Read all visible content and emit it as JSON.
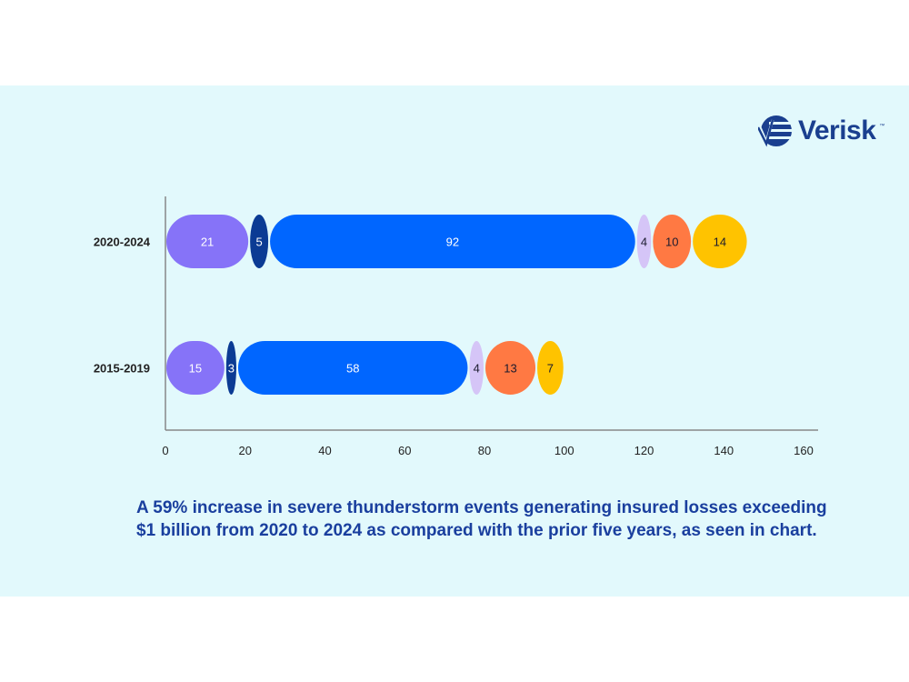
{
  "logo": {
    "text": "Verisk",
    "tm": "™"
  },
  "caption": {
    "line1": "A 59% increase in severe thunderstorm events generating insured losses exceeding",
    "line2": "$1 billion from 2020 to 2024 as compared with the prior five years, as seen in chart."
  },
  "chart_data": {
    "type": "bar",
    "orientation": "horizontal",
    "stacked": true,
    "categories": [
      "2020-2024",
      "2015-2019"
    ],
    "series": [
      {
        "values": [
          21,
          15
        ],
        "color": "#8673f8"
      },
      {
        "values": [
          5,
          3
        ],
        "color": "#0b3b94"
      },
      {
        "values": [
          92,
          58
        ],
        "color": "#0066ff"
      },
      {
        "values": [
          4,
          4
        ],
        "color": "#d5c5f7"
      },
      {
        "values": [
          10,
          13
        ],
        "color": "#ff7943"
      },
      {
        "values": [
          14,
          7
        ],
        "color": "#ffc300"
      }
    ],
    "label_colors": [
      "#ffffff",
      "#ffffff",
      "#ffffff",
      "#1a1a2e",
      "#1a1a2e",
      "#1a1a2e"
    ],
    "xlim": [
      0,
      160
    ],
    "xticks": [
      0,
      20,
      40,
      60,
      80,
      100,
      120,
      140,
      160
    ],
    "grid": false,
    "title": "",
    "xlabel": "",
    "ylabel": ""
  }
}
